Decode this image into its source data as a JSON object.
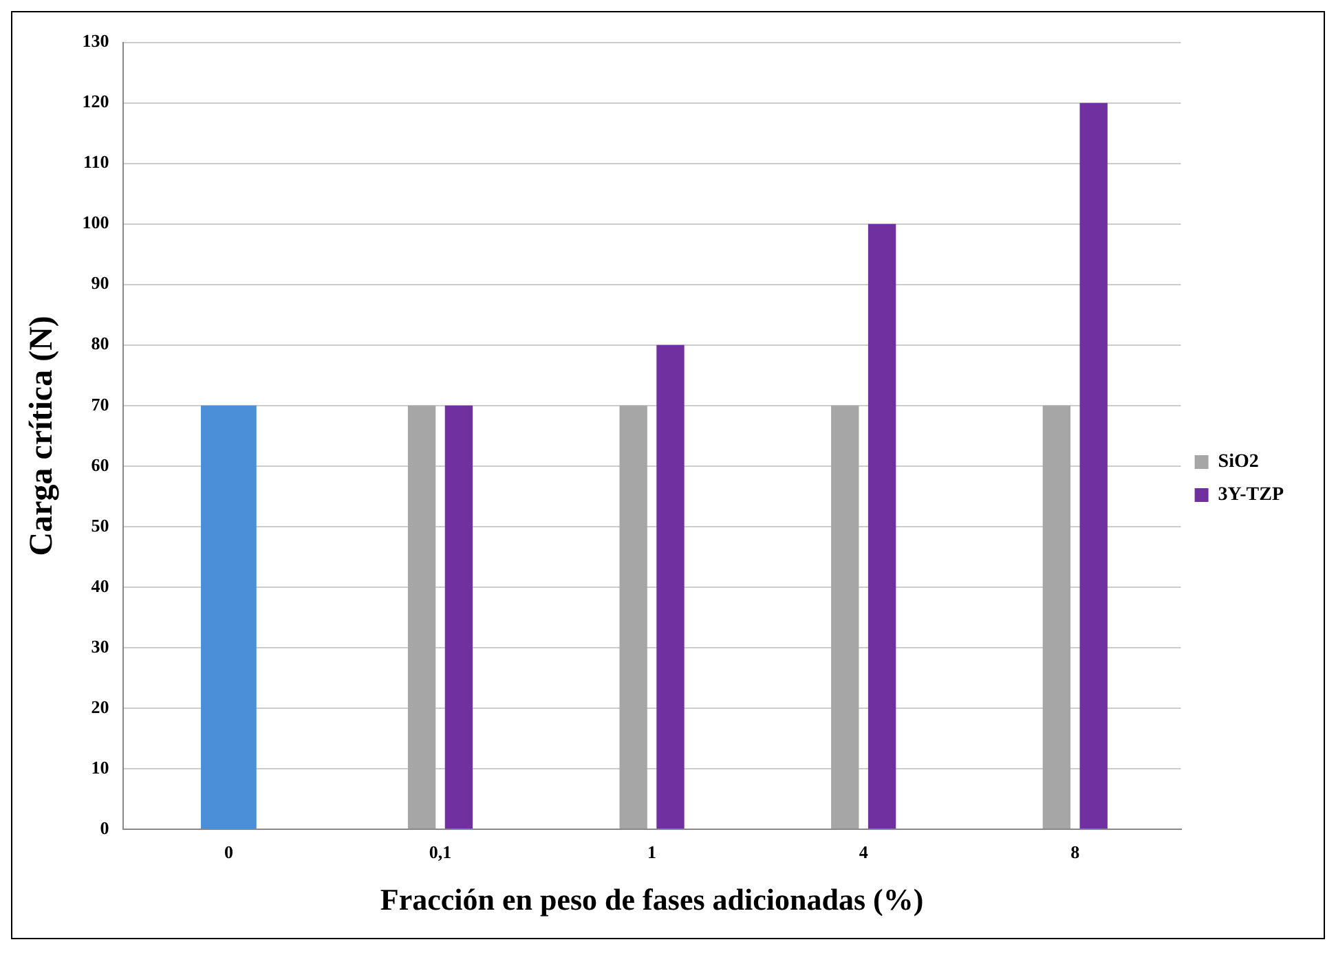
{
  "chart_data": {
    "type": "bar",
    "xlabel": "Fracción en peso de fases adicionadas (%)",
    "ylabel": "Carga crítica (N)",
    "categories": [
      "0",
      "0,1",
      "1",
      "4",
      "8"
    ],
    "series": [
      {
        "name": "SiO2",
        "color": "#a6a6a6",
        "values": [
          null,
          70,
          70,
          70,
          70
        ]
      },
      {
        "name": "3Y-TZP",
        "color": "#7030a0",
        "values": [
          null,
          70,
          80,
          100,
          120
        ]
      },
      {
        "color": "#4a8fd8",
        "values": [
          70,
          null,
          null,
          null,
          null
        ]
      }
    ],
    "ylim": [
      0,
      130
    ],
    "yticks": [
      0,
      10,
      20,
      30,
      40,
      50,
      60,
      70,
      80,
      90,
      100,
      110,
      120,
      130
    ],
    "grid": "y",
    "legend": "right"
  }
}
